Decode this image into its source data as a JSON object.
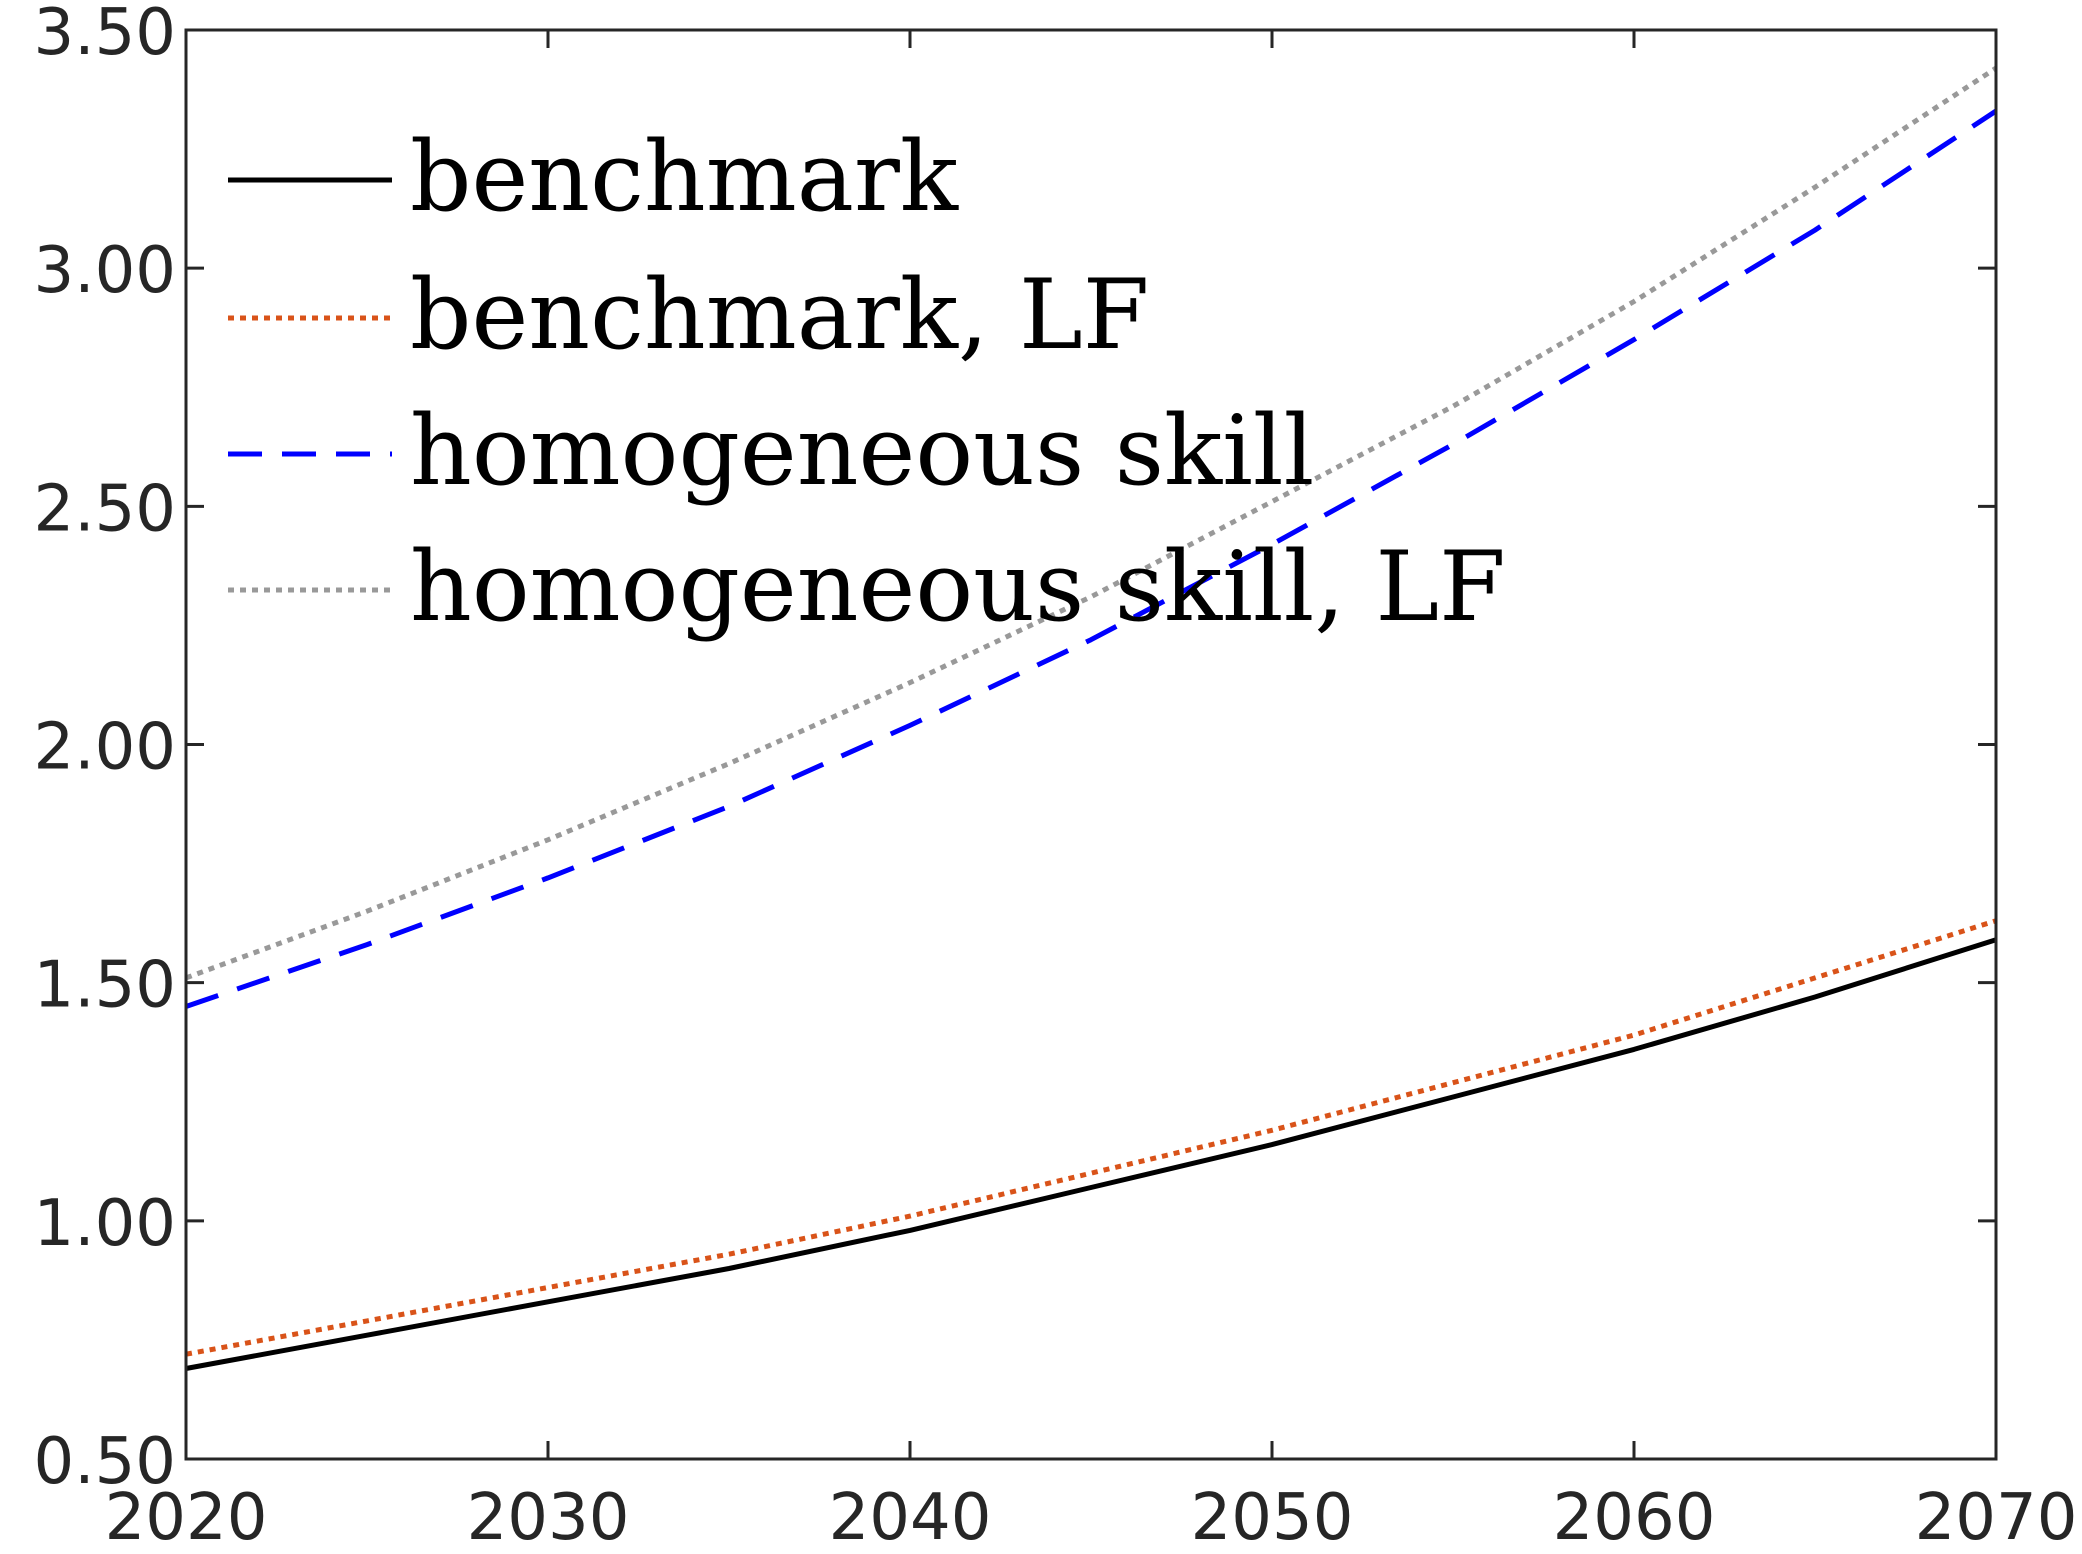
{
  "chart_data": {
    "type": "line",
    "title": "",
    "xlabel": "",
    "ylabel": "",
    "xlim": [
      2020,
      2070
    ],
    "ylim": [
      0.5,
      3.5
    ],
    "xticks": [
      2020,
      2030,
      2040,
      2050,
      2060,
      2070
    ],
    "yticks": [
      0.5,
      1.0,
      1.5,
      2.0,
      2.5,
      3.0,
      3.5
    ],
    "xtick_labels": [
      "2020",
      "2030",
      "2040",
      "2050",
      "2060",
      "2070"
    ],
    "ytick_labels": [
      "0.50",
      "1.00",
      "1.50",
      "2.00",
      "2.50",
      "3.00",
      "3.50"
    ],
    "grid": false,
    "legend_position": "top-left",
    "x": [
      2020,
      2025,
      2030,
      2035,
      2040,
      2045,
      2050,
      2055,
      2060,
      2065,
      2070
    ],
    "series": [
      {
        "name": "benchmark",
        "color": "#000000",
        "style": "solid",
        "values": [
          0.69,
          0.76,
          0.83,
          0.9,
          0.98,
          1.07,
          1.16,
          1.26,
          1.36,
          1.47,
          1.59
        ]
      },
      {
        "name": "benchmark, LF",
        "color": "#d95319",
        "style": "dotted",
        "values": [
          0.72,
          0.79,
          0.86,
          0.93,
          1.01,
          1.1,
          1.19,
          1.29,
          1.39,
          1.51,
          1.63
        ]
      },
      {
        "name": "homogeneous skill",
        "color": "#0000ff",
        "style": "dashed",
        "values": [
          1.45,
          1.58,
          1.72,
          1.87,
          2.04,
          2.22,
          2.42,
          2.63,
          2.85,
          3.08,
          3.33
        ]
      },
      {
        "name": "homogeneous skill, LF",
        "color": "#999999",
        "style": "dotted",
        "values": [
          1.51,
          1.65,
          1.8,
          1.96,
          2.13,
          2.31,
          2.51,
          2.71,
          2.93,
          3.17,
          3.42
        ]
      }
    ]
  }
}
